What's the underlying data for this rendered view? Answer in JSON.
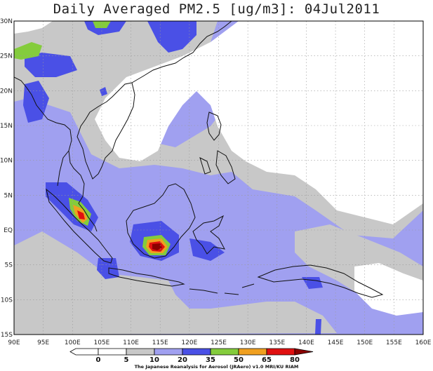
{
  "title": "Daily Averaged PM2.5 [ug/m3]: 04Jul2011",
  "lat_labels": [
    "30N",
    "25N",
    "20N",
    "15N",
    "10N",
    "5N",
    "EQ",
    "5S",
    "10S",
    "15S"
  ],
  "lon_labels": [
    "90E",
    "95E",
    "100E",
    "105E",
    "110E",
    "115E",
    "120E",
    "125E",
    "130E",
    "135E",
    "140E",
    "145E",
    "150E",
    "155E",
    "160E"
  ],
  "extent": {
    "lon": [
      90,
      160
    ],
    "lat": [
      -15,
      30
    ]
  },
  "colorbar": {
    "levels": [
      "0",
      "5",
      "10",
      "20",
      "35",
      "50",
      "65",
      "80"
    ],
    "colors": [
      "#ffffff",
      "#ffffff",
      "#c8c8c8",
      "#a0a0f0",
      "#4a50e6",
      "#84cc3c",
      "#f0a020",
      "#e01010",
      "#8b0000"
    ]
  },
  "credit": "The Japanese Reanalysis for Aerosol (JRAero) v1.0 MRI/KU RIAM"
}
